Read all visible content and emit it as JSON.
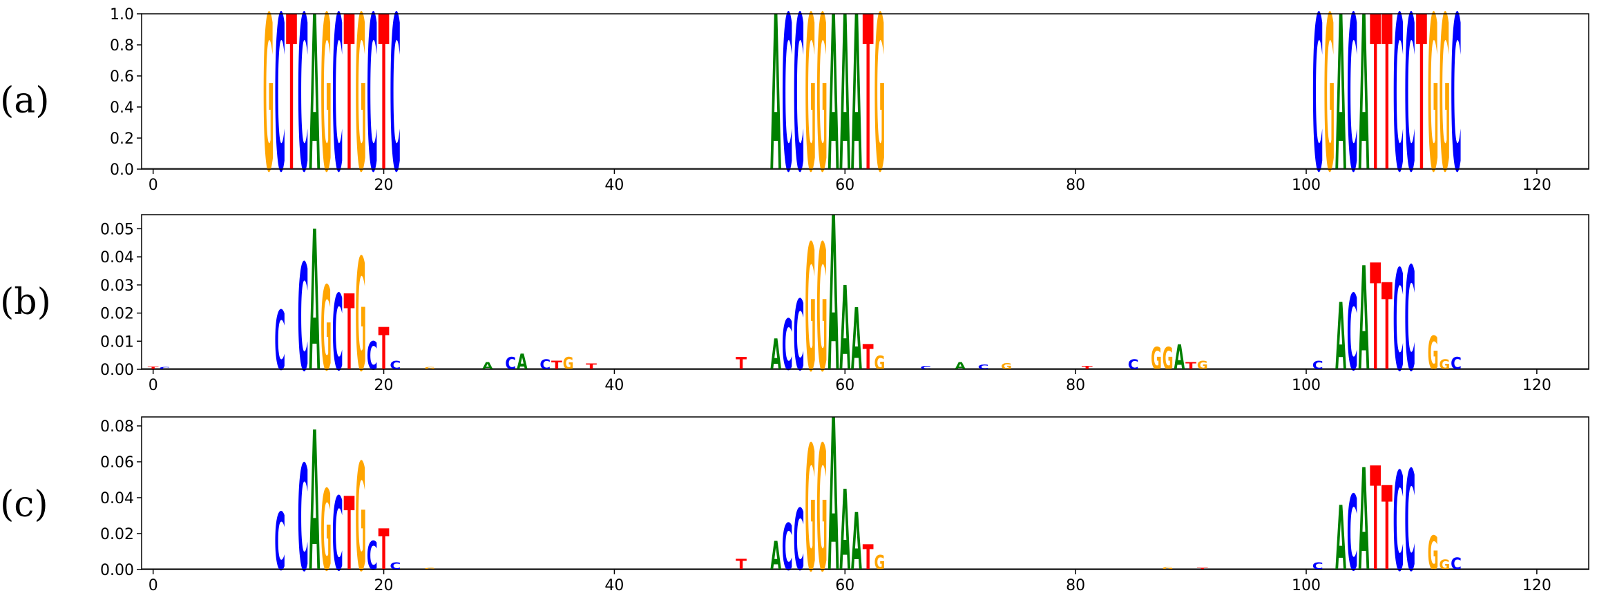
{
  "chart_data": [
    {
      "type": "sequence-logo",
      "panel_label": "(a)",
      "xlim": [
        -1,
        124.5
      ],
      "ylim": [
        0,
        1.0
      ],
      "xticks": [
        0,
        20,
        40,
        60,
        80,
        100,
        120
      ],
      "yticks": [
        0.0,
        0.2,
        0.4,
        0.6,
        0.8,
        1.0
      ],
      "ytick_labels": [
        "0.0",
        "0.2",
        "0.4",
        "0.6",
        "0.8",
        "1.0"
      ],
      "positions": [
        {
          "x": 10,
          "stack": [
            [
              "G",
              1.0
            ]
          ]
        },
        {
          "x": 11,
          "stack": [
            [
              "C",
              1.0
            ]
          ]
        },
        {
          "x": 12,
          "stack": [
            [
              "T",
              1.0
            ]
          ]
        },
        {
          "x": 13,
          "stack": [
            [
              "C",
              1.0
            ]
          ]
        },
        {
          "x": 14,
          "stack": [
            [
              "A",
              1.0
            ]
          ]
        },
        {
          "x": 15,
          "stack": [
            [
              "G",
              1.0
            ]
          ]
        },
        {
          "x": 16,
          "stack": [
            [
              "C",
              1.0
            ]
          ]
        },
        {
          "x": 17,
          "stack": [
            [
              "T",
              1.0
            ]
          ]
        },
        {
          "x": 18,
          "stack": [
            [
              "G",
              1.0
            ]
          ]
        },
        {
          "x": 19,
          "stack": [
            [
              "C",
              1.0
            ]
          ]
        },
        {
          "x": 20,
          "stack": [
            [
              "T",
              1.0
            ]
          ]
        },
        {
          "x": 21,
          "stack": [
            [
              "C",
              1.0
            ]
          ]
        },
        {
          "x": 54,
          "stack": [
            [
              "A",
              1.0
            ]
          ]
        },
        {
          "x": 55,
          "stack": [
            [
              "C",
              1.0
            ]
          ]
        },
        {
          "x": 56,
          "stack": [
            [
              "C",
              1.0
            ]
          ]
        },
        {
          "x": 57,
          "stack": [
            [
              "G",
              1.0
            ]
          ]
        },
        {
          "x": 58,
          "stack": [
            [
              "G",
              1.0
            ]
          ]
        },
        {
          "x": 59,
          "stack": [
            [
              "A",
              1.0
            ]
          ]
        },
        {
          "x": 60,
          "stack": [
            [
              "A",
              1.0
            ]
          ]
        },
        {
          "x": 61,
          "stack": [
            [
              "A",
              1.0
            ]
          ]
        },
        {
          "x": 62,
          "stack": [
            [
              "T",
              1.0
            ]
          ]
        },
        {
          "x": 63,
          "stack": [
            [
              "G",
              1.0
            ]
          ]
        },
        {
          "x": 101,
          "stack": [
            [
              "C",
              1.0
            ]
          ]
        },
        {
          "x": 102,
          "stack": [
            [
              "G",
              1.0
            ]
          ]
        },
        {
          "x": 103,
          "stack": [
            [
              "A",
              1.0
            ]
          ]
        },
        {
          "x": 104,
          "stack": [
            [
              "C",
              1.0
            ]
          ]
        },
        {
          "x": 105,
          "stack": [
            [
              "A",
              1.0
            ]
          ]
        },
        {
          "x": 106,
          "stack": [
            [
              "T",
              1.0
            ]
          ]
        },
        {
          "x": 107,
          "stack": [
            [
              "T",
              1.0
            ]
          ]
        },
        {
          "x": 108,
          "stack": [
            [
              "C",
              1.0
            ]
          ]
        },
        {
          "x": 109,
          "stack": [
            [
              "C",
              1.0
            ]
          ]
        },
        {
          "x": 110,
          "stack": [
            [
              "T",
              1.0
            ]
          ]
        },
        {
          "x": 111,
          "stack": [
            [
              "G",
              1.0
            ]
          ]
        },
        {
          "x": 112,
          "stack": [
            [
              "G",
              1.0
            ]
          ]
        },
        {
          "x": 113,
          "stack": [
            [
              "C",
              1.0
            ]
          ]
        }
      ]
    },
    {
      "type": "sequence-logo",
      "panel_label": "(b)",
      "xlim": [
        -1,
        124.5
      ],
      "ylim": [
        0,
        0.055
      ],
      "xticks": [
        0,
        20,
        40,
        60,
        80,
        100,
        120
      ],
      "yticks": [
        0.0,
        0.01,
        0.02,
        0.03,
        0.04,
        0.05
      ],
      "ytick_labels": [
        "0.00",
        "0.01",
        "0.02",
        "0.03",
        "0.04",
        "0.05"
      ],
      "positions": [
        {
          "x": 0,
          "stack": [
            [
              "T",
              0.001
            ]
          ]
        },
        {
          "x": 1,
          "stack": [
            [
              "C",
              0.0008
            ]
          ]
        },
        {
          "x": 11,
          "stack": [
            [
              "C",
              0.021
            ]
          ]
        },
        {
          "x": 13,
          "stack": [
            [
              "C",
              0.038
            ]
          ]
        },
        {
          "x": 14,
          "stack": [
            [
              "A",
              0.05
            ]
          ]
        },
        {
          "x": 15,
          "stack": [
            [
              "G",
              0.03
            ]
          ]
        },
        {
          "x": 16,
          "stack": [
            [
              "C",
              0.027
            ]
          ]
        },
        {
          "x": 17,
          "stack": [
            [
              "T",
              0.027
            ]
          ]
        },
        {
          "x": 18,
          "stack": [
            [
              "G",
              0.04
            ]
          ]
        },
        {
          "x": 19,
          "stack": [
            [
              "C",
              0.01
            ]
          ]
        },
        {
          "x": 20,
          "stack": [
            [
              "T",
              0.015
            ]
          ]
        },
        {
          "x": 21,
          "stack": [
            [
              "C",
              0.003
            ]
          ]
        },
        {
          "x": 24,
          "stack": [
            [
              "G",
              0.0008
            ]
          ]
        },
        {
          "x": 29,
          "stack": [
            [
              "A",
              0.0025
            ]
          ]
        },
        {
          "x": 31,
          "stack": [
            [
              "C",
              0.0045
            ]
          ]
        },
        {
          "x": 32,
          "stack": [
            [
              "A",
              0.0055
            ]
          ]
        },
        {
          "x": 34,
          "stack": [
            [
              "C",
              0.0035
            ]
          ]
        },
        {
          "x": 35,
          "stack": [
            [
              "T",
              0.003
            ]
          ]
        },
        {
          "x": 36,
          "stack": [
            [
              "G",
              0.0045
            ]
          ]
        },
        {
          "x": 38,
          "stack": [
            [
              "T",
              0.002
            ]
          ]
        },
        {
          "x": 51,
          "stack": [
            [
              "T",
              0.0045
            ]
          ]
        },
        {
          "x": 54,
          "stack": [
            [
              "A",
              0.011
            ]
          ]
        },
        {
          "x": 55,
          "stack": [
            [
              "C",
              0.018
            ]
          ]
        },
        {
          "x": 56,
          "stack": [
            [
              "C",
              0.025
            ]
          ]
        },
        {
          "x": 57,
          "stack": [
            [
              "G",
              0.045
            ]
          ]
        },
        {
          "x": 58,
          "stack": [
            [
              "G",
              0.045
            ]
          ]
        },
        {
          "x": 59,
          "stack": [
            [
              "A",
              0.055
            ]
          ]
        },
        {
          "x": 60,
          "stack": [
            [
              "A",
              0.03
            ]
          ]
        },
        {
          "x": 61,
          "stack": [
            [
              "A",
              0.022
            ]
          ]
        },
        {
          "x": 62,
          "stack": [
            [
              "T",
              0.009
            ]
          ]
        },
        {
          "x": 63,
          "stack": [
            [
              "G",
              0.005
            ]
          ]
        },
        {
          "x": 67,
          "stack": [
            [
              "C",
              0.0012
            ]
          ]
        },
        {
          "x": 70,
          "stack": [
            [
              "A",
              0.0025
            ]
          ]
        },
        {
          "x": 72,
          "stack": [
            [
              "C",
              0.0018
            ]
          ]
        },
        {
          "x": 74,
          "stack": [
            [
              "G",
              0.0022
            ]
          ]
        },
        {
          "x": 81,
          "stack": [
            [
              "T",
              0.0012
            ]
          ]
        },
        {
          "x": 85,
          "stack": [
            [
              "C",
              0.0035
            ]
          ]
        },
        {
          "x": 87,
          "stack": [
            [
              "G",
              0.008
            ]
          ]
        },
        {
          "x": 88,
          "stack": [
            [
              "G",
              0.008
            ]
          ]
        },
        {
          "x": 89,
          "stack": [
            [
              "A",
              0.009
            ]
          ]
        },
        {
          "x": 90,
          "stack": [
            [
              "T",
              0.0025
            ]
          ]
        },
        {
          "x": 91,
          "stack": [
            [
              "G",
              0.003
            ]
          ]
        },
        {
          "x": 101,
          "stack": [
            [
              "C",
              0.003
            ]
          ]
        },
        {
          "x": 103,
          "stack": [
            [
              "A",
              0.024
            ]
          ]
        },
        {
          "x": 104,
          "stack": [
            [
              "C",
              0.027
            ]
          ]
        },
        {
          "x": 105,
          "stack": [
            [
              "A",
              0.037
            ]
          ]
        },
        {
          "x": 106,
          "stack": [
            [
              "T",
              0.038
            ]
          ]
        },
        {
          "x": 107,
          "stack": [
            [
              "T",
              0.031
            ]
          ]
        },
        {
          "x": 108,
          "stack": [
            [
              "C",
              0.036
            ]
          ]
        },
        {
          "x": 109,
          "stack": [
            [
              "C",
              0.037
            ]
          ]
        },
        {
          "x": 111,
          "stack": [
            [
              "G",
              0.012
            ]
          ]
        },
        {
          "x": 112,
          "stack": [
            [
              "G",
              0.0035
            ]
          ]
        },
        {
          "x": 113,
          "stack": [
            [
              "C",
              0.0045
            ]
          ]
        }
      ]
    },
    {
      "type": "sequence-logo",
      "panel_label": "(c)",
      "xlim": [
        -1,
        124.5
      ],
      "ylim": [
        0,
        0.085
      ],
      "xticks": [
        0,
        20,
        40,
        60,
        80,
        100,
        120
      ],
      "yticks": [
        0.0,
        0.02,
        0.04,
        0.06,
        0.08
      ],
      "ytick_labels": [
        "0.00",
        "0.02",
        "0.04",
        "0.06",
        "0.08"
      ],
      "positions": [
        {
          "x": 11,
          "stack": [
            [
              "C",
              0.032
            ]
          ]
        },
        {
          "x": 13,
          "stack": [
            [
              "C",
              0.059
            ]
          ]
        },
        {
          "x": 14,
          "stack": [
            [
              "A",
              0.078
            ]
          ]
        },
        {
          "x": 15,
          "stack": [
            [
              "G",
              0.045
            ]
          ]
        },
        {
          "x": 16,
          "stack": [
            [
              "C",
              0.041
            ]
          ]
        },
        {
          "x": 17,
          "stack": [
            [
              "T",
              0.041
            ]
          ]
        },
        {
          "x": 18,
          "stack": [
            [
              "G",
              0.06
            ]
          ]
        },
        {
          "x": 19,
          "stack": [
            [
              "C",
              0.016
            ]
          ]
        },
        {
          "x": 20,
          "stack": [
            [
              "T",
              0.023
            ]
          ]
        },
        {
          "x": 21,
          "stack": [
            [
              "C",
              0.004
            ]
          ]
        },
        {
          "x": 24,
          "stack": [
            [
              "G",
              0.001
            ]
          ]
        },
        {
          "x": 51,
          "stack": [
            [
              "T",
              0.006
            ]
          ]
        },
        {
          "x": 54,
          "stack": [
            [
              "A",
              0.016
            ]
          ]
        },
        {
          "x": 55,
          "stack": [
            [
              "C",
              0.026
            ]
          ]
        },
        {
          "x": 56,
          "stack": [
            [
              "C",
              0.034
            ]
          ]
        },
        {
          "x": 57,
          "stack": [
            [
              "G",
              0.07
            ]
          ]
        },
        {
          "x": 58,
          "stack": [
            [
              "G",
              0.07
            ]
          ]
        },
        {
          "x": 59,
          "stack": [
            [
              "A",
              0.085
            ]
          ]
        },
        {
          "x": 60,
          "stack": [
            [
              "A",
              0.045
            ]
          ]
        },
        {
          "x": 61,
          "stack": [
            [
              "A",
              0.032
            ]
          ]
        },
        {
          "x": 62,
          "stack": [
            [
              "T",
              0.014
            ]
          ]
        },
        {
          "x": 63,
          "stack": [
            [
              "G",
              0.008
            ]
          ]
        },
        {
          "x": 88,
          "stack": [
            [
              "G",
              0.0012
            ]
          ]
        },
        {
          "x": 91,
          "stack": [
            [
              "T",
              0.001
            ]
          ]
        },
        {
          "x": 101,
          "stack": [
            [
              "C",
              0.004
            ]
          ]
        },
        {
          "x": 103,
          "stack": [
            [
              "A",
              0.036
            ]
          ]
        },
        {
          "x": 104,
          "stack": [
            [
              "C",
              0.042
            ]
          ]
        },
        {
          "x": 105,
          "stack": [
            [
              "A",
              0.057
            ]
          ]
        },
        {
          "x": 106,
          "stack": [
            [
              "T",
              0.058
            ]
          ]
        },
        {
          "x": 107,
          "stack": [
            [
              "T",
              0.047
            ]
          ]
        },
        {
          "x": 108,
          "stack": [
            [
              "C",
              0.055
            ]
          ]
        },
        {
          "x": 109,
          "stack": [
            [
              "C",
              0.056
            ]
          ]
        },
        {
          "x": 111,
          "stack": [
            [
              "G",
              0.019
            ]
          ]
        },
        {
          "x": 112,
          "stack": [
            [
              "G",
              0.0055
            ]
          ]
        },
        {
          "x": 113,
          "stack": [
            [
              "C",
              0.0068
            ]
          ]
        }
      ]
    }
  ],
  "colors": {
    "A": "#008000",
    "C": "#0000ff",
    "G": "#ffa500",
    "T": "#ff0000",
    "axis": "#000000",
    "baseline": "#808080"
  }
}
